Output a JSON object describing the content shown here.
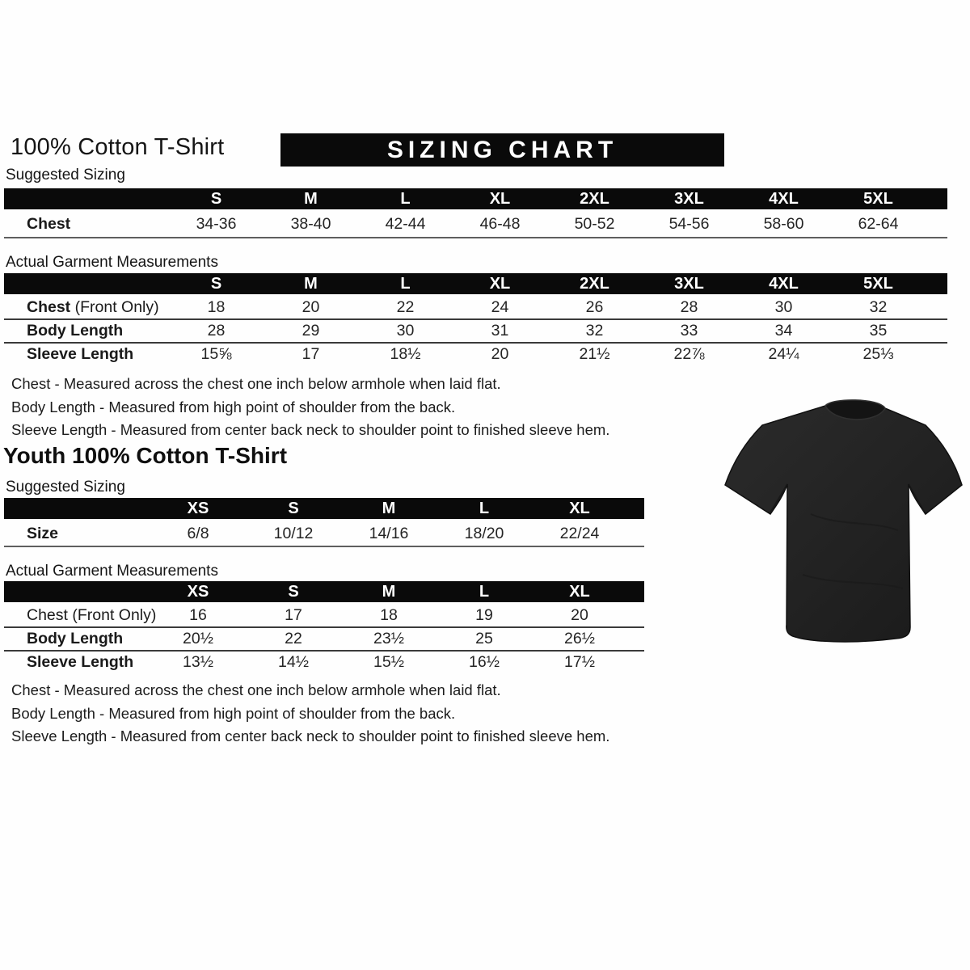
{
  "header": {
    "title": "100% Cotton T-Shirt",
    "banner": "SIZING CHART"
  },
  "adult": {
    "suggested_label": "Suggested Sizing",
    "suggested_table": {
      "columns": [
        "S",
        "M",
        "L",
        "XL",
        "2XL",
        "3XL",
        "4XL",
        "5XL"
      ],
      "rows": [
        {
          "label_bold": "Chest",
          "label_rest": "",
          "values": [
            "34-36",
            "38-40",
            "42-44",
            "46-48",
            "50-52",
            "54-56",
            "58-60",
            "62-64"
          ]
        }
      ]
    },
    "actual_label": "Actual Garment Measurements",
    "actual_table": {
      "columns": [
        "S",
        "M",
        "L",
        "XL",
        "2XL",
        "3XL",
        "4XL",
        "5XL"
      ],
      "rows": [
        {
          "label_bold": "Chest",
          "label_rest": " (Front Only)",
          "values": [
            "18",
            "20",
            "22",
            "24",
            "26",
            "28",
            "30",
            "32"
          ]
        },
        {
          "label_bold": "Body Length",
          "label_rest": "",
          "values": [
            "28",
            "29",
            "30",
            "31",
            "32",
            "33",
            "34",
            "35"
          ]
        },
        {
          "label_bold": "Sleeve Length",
          "label_rest": "",
          "values": [
            "15⅝",
            "17",
            "18½",
            "20",
            "21½",
            "22⅞",
            "24¼",
            "25⅓"
          ]
        }
      ]
    },
    "notes": [
      "Chest - Measured across the chest one inch below armhole when laid flat.",
      "Body Length - Measured from high point of shoulder from the back.",
      "Sleeve Length - Measured from center back neck to shoulder point to finished sleeve hem."
    ]
  },
  "youth": {
    "title": "Youth 100% Cotton T-Shirt",
    "suggested_label": "Suggested Sizing",
    "suggested_table": {
      "columns": [
        "XS",
        "S",
        "M",
        "L",
        "XL"
      ],
      "rows": [
        {
          "label_bold": "Size",
          "label_rest": "",
          "values": [
            "6/8",
            "10/12",
            "14/16",
            "18/20",
            "22/24"
          ]
        }
      ]
    },
    "actual_label": "Actual Garment Measurements",
    "actual_table": {
      "columns": [
        "XS",
        "S",
        "M",
        "L",
        "XL"
      ],
      "rows": [
        {
          "label_bold": "",
          "label_rest": "Chest (Front Only)",
          "values": [
            "16",
            "17",
            "18",
            "19",
            "20"
          ]
        },
        {
          "label_bold": "Body Length",
          "label_rest": "",
          "values": [
            "20½",
            "22",
            "23½",
            "25",
            "26½"
          ]
        },
        {
          "label_bold": "Sleeve Length",
          "label_rest": "",
          "values": [
            "13½",
            "14½",
            "15½",
            "16½",
            "17½"
          ]
        }
      ]
    },
    "notes": [
      "Chest - Measured across the chest one inch below armhole when laid flat.",
      "Body Length - Measured from high point of shoulder from the back.",
      "Sleeve Length - Measured from center back neck to shoulder point to finished sleeve hem."
    ]
  },
  "tshirt_photo": {
    "description": "black short-sleeve crew-neck t-shirt",
    "shirt_color": "#212121"
  },
  "colors": {
    "banner_bg": "#0a0a0a",
    "banner_text": "#ffffff",
    "table_header_bg": "#0a0a0a",
    "page_bg": "#fefefe"
  }
}
